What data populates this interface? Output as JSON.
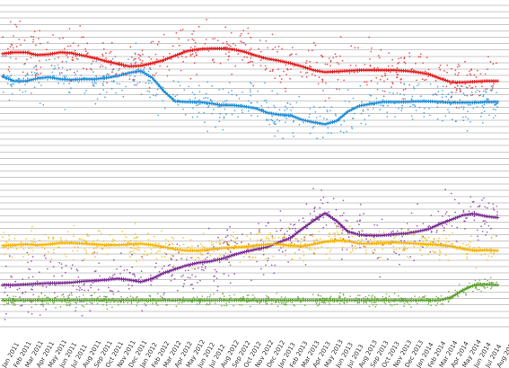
{
  "chart_data": {
    "type": "line",
    "title": "",
    "xlabel": "",
    "ylabel": "",
    "grid": true,
    "legend": "none",
    "ylim": [
      0,
      50
    ],
    "x_tick_labels": [
      "Jan 2011",
      "Feb 2011",
      "Mar 2011",
      "Apr 2011",
      "May 2011",
      "Jun 2011",
      "Jul 2011",
      "Aug 2011",
      "Sep 2011",
      "Oct 2011",
      "Nov 2011",
      "Dec 2011",
      "Jan 2012",
      "Feb 2012",
      "Mar 2012",
      "Apr 2012",
      "May 2012",
      "Jun 2012",
      "Jul 2012",
      "Aug 2012",
      "Sep 2012",
      "Oct 2012",
      "Nov 2012",
      "Dec 2012",
      "Jan 2013",
      "Feb 2013",
      "Mar 2013",
      "Apr 2013",
      "May 2013",
      "Jun 2013",
      "Jul 2013",
      "Aug 2013",
      "Sep 2013",
      "Oct 2013",
      "Nov 2013",
      "Dec 2013",
      "Jan 2014",
      "Feb 2014",
      "Mar 2014",
      "Apr 2014",
      "May 2014",
      "Jun 2014",
      "Jul 2014",
      "Aug 2014"
    ],
    "series": [
      {
        "color": "#e41a1c",
        "scatter": 3.0,
        "values": [
          42.4,
          42.6,
          42.6,
          42.2,
          42.3,
          42.6,
          42.5,
          42.1,
          41.7,
          41.2,
          40.8,
          40.4,
          40.5,
          40.9,
          41.4,
          42.1,
          42.8,
          43.1,
          43.2,
          43.2,
          43.1,
          42.7,
          42.1,
          41.6,
          41.3,
          40.9,
          40.4,
          39.8,
          39.5,
          39.6,
          39.7,
          39.8,
          39.8,
          39.8,
          39.8,
          39.7,
          39.5,
          39.2,
          38.5,
          37.9,
          37.9,
          38.0,
          38.1,
          38.1
        ]
      },
      {
        "color": "#1f8fd8",
        "scatter": 2.6,
        "values": [
          38.8,
          38.1,
          38.1,
          38.5,
          38.7,
          38.4,
          38.3,
          38.4,
          38.4,
          38.6,
          38.9,
          39.4,
          39.7,
          38.6,
          36.5,
          34.9,
          34.8,
          34.8,
          34.6,
          34.3,
          34.3,
          34.1,
          33.8,
          33.1,
          32.8,
          32.7,
          32.0,
          31.6,
          31.3,
          31.8,
          33.3,
          34.2,
          34.5,
          34.8,
          34.8,
          34.8,
          34.9,
          34.9,
          34.8,
          34.7,
          34.7,
          34.7,
          34.8,
          34.8
        ]
      },
      {
        "color": "#7b2c94",
        "scatter": 3.2,
        "values": [
          6.0,
          6.0,
          6.1,
          6.2,
          6.3,
          6.3,
          6.4,
          6.6,
          6.7,
          6.8,
          7.0,
          6.8,
          6.5,
          7.0,
          7.9,
          8.5,
          9.1,
          9.5,
          9.7,
          10.1,
          10.7,
          11.2,
          11.6,
          12.0,
          12.7,
          13.4,
          14.8,
          16.1,
          17.3,
          16.1,
          14.4,
          13.9,
          13.8,
          13.8,
          14.0,
          14.1,
          14.4,
          14.8,
          15.6,
          16.3,
          17.0,
          17.2,
          16.8,
          16.6
        ]
      },
      {
        "color": "#f5b400",
        "scatter": 1.8,
        "values": [
          12.2,
          12.3,
          12.4,
          12.3,
          12.4,
          12.6,
          12.6,
          12.5,
          12.4,
          12.3,
          12.3,
          12.4,
          12.5,
          12.3,
          12.0,
          11.6,
          11.4,
          11.4,
          11.6,
          11.8,
          11.9,
          12.0,
          12.2,
          12.4,
          12.4,
          12.2,
          12.1,
          12.4,
          12.8,
          13.0,
          12.9,
          12.5,
          12.5,
          12.6,
          12.7,
          12.6,
          12.5,
          12.4,
          12.3,
          12.1,
          11.7,
          11.4,
          11.5,
          11.4
        ]
      },
      {
        "color": "#5aa02c",
        "scatter": 0.7,
        "values": [
          3.6,
          3.6,
          3.6,
          3.6,
          3.6,
          3.6,
          3.6,
          3.6,
          3.6,
          3.6,
          3.6,
          3.6,
          3.6,
          3.6,
          3.6,
          3.6,
          3.6,
          3.6,
          3.6,
          3.6,
          3.6,
          3.6,
          3.6,
          3.6,
          3.6,
          3.6,
          3.6,
          3.6,
          3.6,
          3.6,
          3.6,
          3.6,
          3.6,
          3.6,
          3.6,
          3.6,
          3.6,
          3.6,
          3.6,
          4.1,
          5.2,
          6.0,
          6.1,
          6.0
        ]
      }
    ]
  }
}
